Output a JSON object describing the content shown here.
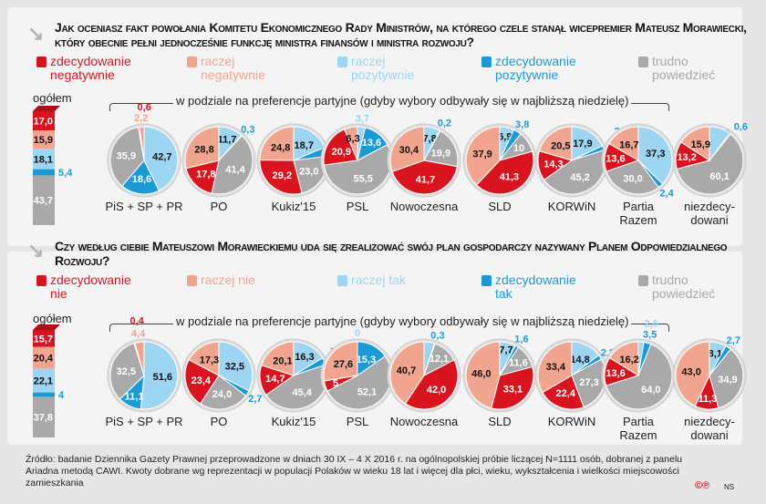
{
  "colors": {
    "zdecydowanie_neg": "#d9141e",
    "raczej_neg": "#f2a58e",
    "raczej_poz": "#9dd6f2",
    "zdecydowanie_poz": "#1a9ad6",
    "trudno": "#a9a9a9"
  },
  "common": {
    "ogolem": "ogółem",
    "subtitle": "w podziale na preferencje partyjne (gdyby wybory odbywały się w najbliższą niedzielę)"
  },
  "parties": [
    "PiS + SP + PR",
    "PO",
    "Kukiz'15",
    "PSL",
    "Nowoczesna",
    "SLD",
    "KORWiN",
    "Partia\nRazem",
    "niezdecy-\ndowani"
  ],
  "footer": {
    "source": "Źródło: badanie Dziennika Gazety Prawnej przeprowadzone w dniach 30 IX – 4 X 2016 r. na ogólnopolskiej próbie liczącej N=1111 osób, dobranej z panelu Ariadna metodą CAWI. Kwoty dobrane wg reprezentacji w populacji Polaków w wieku 18 lat i więcej dla płci, wieku, wykształcenia i wielkości miejscowości zamieszkania",
    "copyright": "©℗",
    "author": "NS"
  },
  "chart_data": [
    {
      "type": "pie",
      "title": "Jak oceniasz fakt powołania Komitetu Ekonomicznego Rady Ministrów, na którego czele stanął wicepremier Mateusz Morawiecki, który obecnie pełni jednocześnie funkcję ministra finansów i ministra rozwoju?",
      "categories": [
        "zdecydowanie negatywnie",
        "raczej negatywnie",
        "raczej pozytywnie",
        "zdecydowanie pozytywnie",
        "trudno powiedzieć"
      ],
      "overall": [
        17.0,
        15.9,
        18.1,
        5.4,
        43.7
      ],
      "groups": [
        [
          0.6,
          2.2,
          42.7,
          18.6,
          35.9
        ],
        [
          17.8,
          28.8,
          11.7,
          0.3,
          41.4
        ],
        [
          29.2,
          24.8,
          18.7,
          4.4,
          23.0
        ],
        [
          20.9,
          6.3,
          3.7,
          13.6,
          55.5
        ],
        [
          41.7,
          30.4,
          7.8,
          0.2,
          19.9
        ],
        [
          41.3,
          37.9,
          6.9,
          3.8,
          10
        ],
        [
          14.3,
          20.5,
          17.9,
          2.2,
          45.2
        ],
        [
          13.6,
          16.7,
          37.3,
          2.4,
          30.0
        ],
        [
          13.2,
          15.9,
          10.2,
          0.6,
          60.1
        ]
      ]
    },
    {
      "type": "pie",
      "title": "Czy według ciebie Mateuszowi Morawieckiemu uda się zrealizować swój plan gospodarczy nazywany Planem Odpowiedzialnego Rozwoju?",
      "categories": [
        "zdecydowanie nie",
        "raczej nie",
        "raczej tak",
        "zdecydowanie tak",
        "trudno powiedzieć"
      ],
      "overall": [
        15.7,
        20.4,
        22.1,
        4.0,
        37.8
      ],
      "groups": [
        [
          0.4,
          4.4,
          51.6,
          11.1,
          32.5
        ],
        [
          23.4,
          17.3,
          32.5,
          2.7,
          24.0
        ],
        [
          14.7,
          20.1,
          16.3,
          3.5,
          45.4
        ],
        [
          5.0,
          27.6,
          0,
          15.3,
          52.1
        ],
        [
          42.0,
          40.7,
          5,
          0.3,
          12.1
        ],
        [
          33.1,
          46.0,
          7.7,
          1.6,
          11.6
        ],
        [
          22.4,
          33.4,
          14.8,
          2.2,
          27.3
        ],
        [
          13.6,
          16.2,
          2.6,
          3.5,
          64.0
        ],
        [
          11.3,
          43.0,
          8.1,
          2.7,
          34.9
        ]
      ]
    }
  ]
}
